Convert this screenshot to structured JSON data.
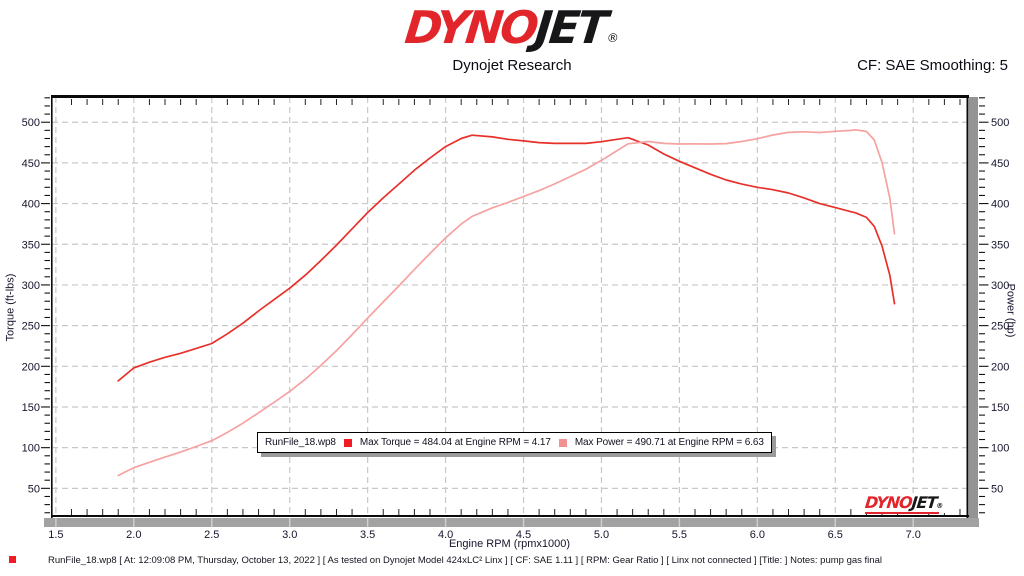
{
  "header": {
    "logo": {
      "dyno": "DYNO",
      "jet": "JET",
      "reg": "®"
    },
    "subtitle": "Dynojet Research",
    "smoothing": "CF: SAE Smoothing: 5"
  },
  "chart_data": {
    "type": "line",
    "title": "",
    "xlabel": "Engine RPM (rpmx1000)",
    "ylabel_left": "Torque (ft-lbs)",
    "ylabel_right": "Power (hp)",
    "xlim": [
      1.475,
      7.345
    ],
    "ylim": [
      16,
      531
    ],
    "x_major_ticks": {
      "start": 1.5,
      "end": 7.0,
      "step": 0.5
    },
    "x_minor_step": 0.1,
    "y_major_ticks": {
      "start": 50,
      "end": 500,
      "step": 50
    },
    "y_minor_step": 10,
    "grid": "dashed-major",
    "grid_color": "#c8c8c8",
    "series": [
      {
        "name": "Torque",
        "axis": "left",
        "color": "#e8302a",
        "x": [
          1.9,
          2.0,
          2.1,
          2.2,
          2.3,
          2.4,
          2.5,
          2.6,
          2.7,
          2.8,
          2.9,
          3.0,
          3.1,
          3.2,
          3.3,
          3.4,
          3.5,
          3.6,
          3.7,
          3.8,
          3.9,
          4.0,
          4.1,
          4.17,
          4.3,
          4.4,
          4.5,
          4.6,
          4.7,
          4.8,
          4.9,
          5.0,
          5.1,
          5.17,
          5.3,
          5.4,
          5.5,
          5.6,
          5.7,
          5.8,
          5.9,
          6.0,
          6.1,
          6.2,
          6.3,
          6.4,
          6.5,
          6.6,
          6.63,
          6.7,
          6.75,
          6.8,
          6.85,
          6.88
        ],
        "values": [
          182,
          198,
          205,
          211,
          216,
          222,
          228,
          240,
          253,
          268,
          282,
          296,
          312,
          330,
          349,
          369,
          389,
          407,
          424,
          441,
          456,
          470,
          480,
          484.04,
          482,
          479,
          477,
          475,
          474,
          474,
          474,
          476,
          479,
          481,
          472,
          461,
          452,
          444,
          436,
          429,
          424,
          420,
          417,
          413,
          407,
          400,
          395,
          390,
          388.7,
          383,
          372,
          348,
          312,
          277
        ]
      },
      {
        "name": "Power",
        "axis": "right",
        "color": "#f5a2a0",
        "x": [
          1.9,
          2.0,
          2.1,
          2.2,
          2.3,
          2.4,
          2.5,
          2.6,
          2.7,
          2.8,
          2.9,
          3.0,
          3.1,
          3.2,
          3.3,
          3.4,
          3.5,
          3.6,
          3.7,
          3.8,
          3.9,
          4.0,
          4.1,
          4.17,
          4.3,
          4.4,
          4.5,
          4.6,
          4.7,
          4.8,
          4.9,
          5.0,
          5.1,
          5.17,
          5.3,
          5.4,
          5.5,
          5.6,
          5.7,
          5.8,
          5.9,
          6.0,
          6.1,
          6.2,
          6.3,
          6.4,
          6.5,
          6.6,
          6.63,
          6.7,
          6.75,
          6.8,
          6.85,
          6.88
        ],
        "values": [
          65.8,
          75.4,
          82.0,
          88.4,
          94.6,
          101.4,
          108.5,
          118.8,
          130.1,
          142.9,
          155.7,
          169.1,
          184.2,
          201.1,
          219.3,
          239.0,
          259.2,
          279.0,
          298.7,
          319.1,
          338.7,
          357.9,
          374.8,
          384.3,
          394.8,
          401.3,
          408.7,
          416.0,
          424.2,
          433.2,
          442.3,
          453.2,
          465.1,
          473.5,
          476.3,
          474.0,
          473.2,
          473.4,
          473.2,
          473.7,
          476.3,
          479.8,
          484.3,
          487.5,
          488.2,
          487.4,
          488.8,
          490.0,
          490.71,
          488.6,
          478.1,
          450.5,
          407.0,
          362.9
        ]
      }
    ]
  },
  "legend": {
    "file": "RunFile_18.wp8",
    "entries": [
      {
        "swatch": "#ee1c25",
        "label": "Max Torque = 484.04 at Engine RPM = 4.17"
      },
      {
        "swatch": "#f2918f",
        "label": "Max Power = 490.71 at Engine RPM = 6.63"
      }
    ]
  },
  "watermark": {
    "dyno": "DYNO",
    "jet": "JET",
    "reg": "®"
  },
  "footer": {
    "swatch_color": "#ee1c25",
    "text": "RunFile_18.wp8 [ At: 12:09:08 PM, Thursday, October 13, 2022 ] [ As tested on Dynojet Model 424xLC² Linx ] [ CF: SAE 1.11 ] [ RPM: Gear Ratio ] [ Linx not connected ] [Title: ]  Notes: pump gas final"
  }
}
